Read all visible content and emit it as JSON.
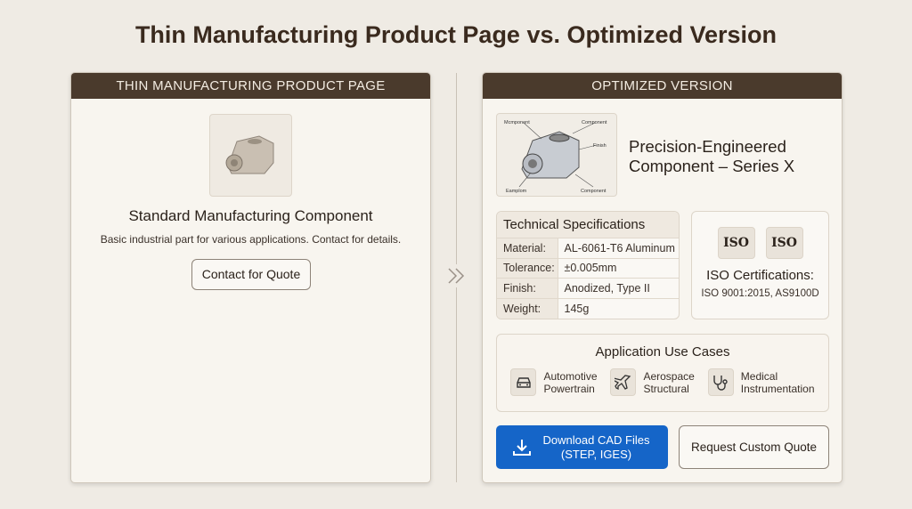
{
  "title": "Thin Manufacturing Product Page vs. Optimized Version",
  "left": {
    "header": "THIN MANUFACTURING PRODUCT PAGE",
    "product_title": "Standard Manufacturing Component",
    "description": "Basic industrial part for various applications. Contact for details.",
    "button": "Contact for Quote"
  },
  "right": {
    "header": "OPTIMIZED VERSION",
    "image_labels": [
      "Mcmponent",
      "Component",
      "Finish",
      "Eamplom",
      "Component"
    ],
    "product_title_line1": "Precision-Engineered",
    "product_title_line2": "Component – Series X",
    "specs": {
      "title": "Technical Specifications",
      "rows": [
        {
          "k": "Material:",
          "v": "AL-6061-T6 Aluminum"
        },
        {
          "k": "Tolerance:",
          "v": "±0.005mm"
        },
        {
          "k": "Finish:",
          "v": "Anodized, Type II"
        },
        {
          "k": "Weight:",
          "v": "145g"
        }
      ]
    },
    "iso": {
      "badge": "ISO",
      "title": "ISO Certifications:",
      "list": "ISO 9001:2015, AS9100D"
    },
    "use_cases": {
      "title": "Application Use Cases",
      "items": [
        {
          "l1": "Automotive",
          "l2": "Powertrain",
          "icon": "car-icon"
        },
        {
          "l1": "Aerospace",
          "l2": "Structural",
          "icon": "airplane-icon"
        },
        {
          "l1": "Medical",
          "l2": "Instrumentation",
          "icon": "stethoscope-icon"
        }
      ]
    },
    "download": {
      "l1": "Download CAD Files",
      "l2": "(STEP, IGES)"
    },
    "quote": "Request Custom Quote"
  },
  "colors": {
    "header": "#4a3a2c",
    "primary": "#1565c8",
    "background": "#efebe4"
  }
}
